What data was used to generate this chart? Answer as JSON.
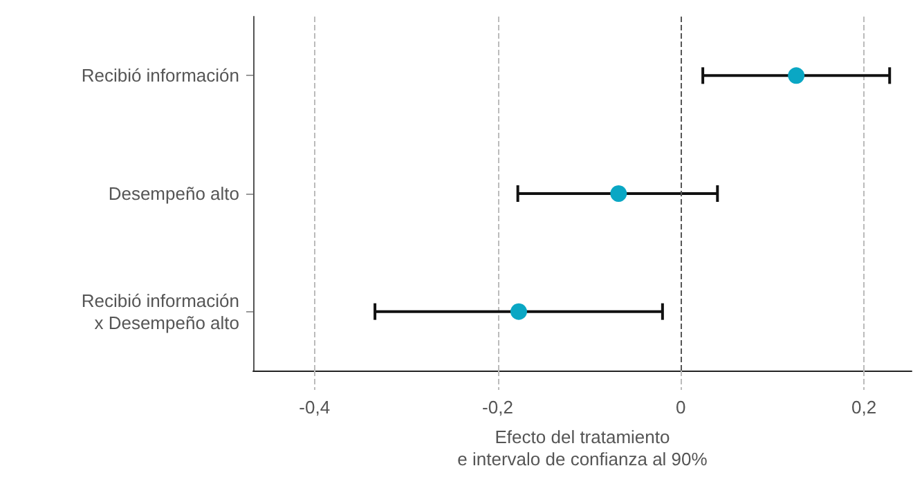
{
  "chart_data": {
    "type": "scatter",
    "orientation": "horizontal",
    "categories": [
      "Recibió información",
      "Desempeño alto",
      "Recibió información\nx Desempeño alto"
    ],
    "values": [
      0.126,
      -0.068,
      -0.177
    ],
    "errors": [
      [
        0.024,
        0.228
      ],
      [
        -0.178,
        0.04
      ],
      [
        -0.334,
        -0.02
      ]
    ],
    "color": "#0aa7c4",
    "xlabel": "Efecto del tratamiento\ne intervalo de confianza al 90%",
    "xlim": [
      -0.467,
      0.252
    ],
    "xticks": [
      {
        "value": -0.4,
        "label": "-0,4"
      },
      {
        "value": -0.2,
        "label": "-0,2"
      },
      0,
      {
        "value": 0.2,
        "label": "0,2"
      }
    ],
    "ref_lines": [
      {
        "axis": "x",
        "value": 0,
        "color": "#555555",
        "line_style": "dashed"
      }
    ],
    "grid": "x",
    "marker": "circle"
  }
}
